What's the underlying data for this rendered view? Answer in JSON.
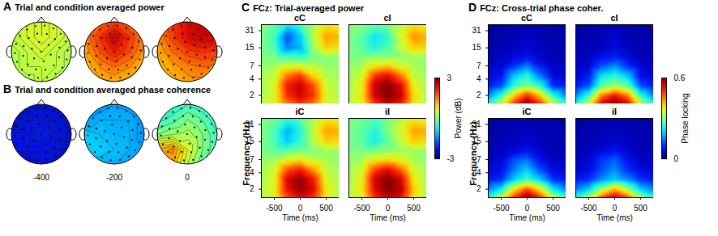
{
  "chart_data": [
    {
      "type": "topomap",
      "label": "A",
      "title": "Trial and condition averaged power",
      "maps": [
        [
          [
            0.5,
            0.5,
            0.6,
            0.5,
            0.5
          ],
          [
            0.4,
            0.5,
            0.6,
            0.5,
            0.4
          ],
          [
            0.3,
            0.4,
            0.5,
            0.4,
            0.3
          ],
          [
            0.3,
            0.4,
            0.4,
            0.4,
            0.3
          ],
          [
            0.3,
            0.3,
            0.4,
            0.3,
            0.3
          ]
        ],
        [
          [
            1.2,
            1.6,
            1.9,
            1.6,
            1.2
          ],
          [
            1.4,
            2.0,
            2.6,
            2.0,
            1.4
          ],
          [
            1.2,
            1.8,
            2.2,
            1.8,
            1.3
          ],
          [
            1.0,
            1.4,
            1.6,
            1.4,
            1.1
          ],
          [
            0.9,
            1.1,
            1.2,
            1.1,
            1.0
          ]
        ],
        [
          [
            1.6,
            2.0,
            2.4,
            2.6,
            2.4
          ],
          [
            1.4,
            1.9,
            2.4,
            2.6,
            2.4
          ],
          [
            1.2,
            1.6,
            1.9,
            2.0,
            1.9
          ],
          [
            1.1,
            1.3,
            1.5,
            1.6,
            1.5
          ],
          [
            1.0,
            1.1,
            1.3,
            1.3,
            1.2
          ]
        ]
      ]
    },
    {
      "type": "topomap",
      "label": "B",
      "title": "Trial and condition averaged phase coherence",
      "times": [
        -400,
        -200,
        0
      ],
      "maps": [
        [
          [
            0.06,
            0.06,
            0.06,
            0.06,
            0.06
          ],
          [
            0.06,
            0.07,
            0.07,
            0.07,
            0.06
          ],
          [
            0.07,
            0.07,
            0.08,
            0.07,
            0.06
          ],
          [
            0.07,
            0.07,
            0.07,
            0.07,
            0.06
          ],
          [
            0.06,
            0.06,
            0.07,
            0.06,
            0.06
          ]
        ],
        [
          [
            0.14,
            0.16,
            0.17,
            0.16,
            0.14
          ],
          [
            0.17,
            0.18,
            0.18,
            0.18,
            0.16
          ],
          [
            0.2,
            0.19,
            0.18,
            0.18,
            0.16
          ],
          [
            0.2,
            0.2,
            0.19,
            0.18,
            0.17
          ],
          [
            0.18,
            0.18,
            0.18,
            0.17,
            0.16
          ]
        ],
        [
          [
            0.22,
            0.24,
            0.26,
            0.24,
            0.22
          ],
          [
            0.25,
            0.27,
            0.3,
            0.28,
            0.24
          ],
          [
            0.3,
            0.32,
            0.33,
            0.3,
            0.26
          ],
          [
            0.42,
            0.45,
            0.36,
            0.3,
            0.26
          ],
          [
            0.4,
            0.42,
            0.34,
            0.28,
            0.25
          ]
        ]
      ]
    },
    {
      "type": "heatmap",
      "label": "C",
      "title": "FCz: Trial-averaged power",
      "xlabel": "Time (ms)",
      "ylabel": "Frequency (Hz)",
      "log": "y",
      "x": [
        -750,
        -500,
        -250,
        0,
        250,
        500,
        750
      ],
      "y": [
        1.4,
        2,
        3,
        4.5,
        7,
        10,
        15,
        24,
        40
      ],
      "xlim": [
        -750,
        750
      ],
      "ylim": [
        1.4,
        40
      ],
      "xticks": [
        -500,
        0,
        500
      ],
      "yticks": [
        2,
        4,
        7,
        15,
        31
      ],
      "colorbar": {
        "label": "Power (dB)",
        "range": [
          -3,
          3
        ],
        "ticks": [
          -3,
          3
        ]
      },
      "cells": [
        {
          "name": "cC",
          "values": [
            [
              0.3,
              0.5,
              1.5,
              2.0,
              1.5,
              0.5,
              0.3
            ],
            [
              0.3,
              0.6,
              2.0,
              2.5,
              2.0,
              0.6,
              0.3
            ],
            [
              0.2,
              0.6,
              2.2,
              2.6,
              1.8,
              0.5,
              0.2
            ],
            [
              0.2,
              0.4,
              1.6,
              2.0,
              1.0,
              0.3,
              0.2
            ],
            [
              0.1,
              0.2,
              0.5,
              0.6,
              0.3,
              0.1,
              0.1
            ],
            [
              0,
              0,
              -0.3,
              -0.4,
              0,
              0.1,
              0
            ],
            [
              0,
              -0.3,
              -1.5,
              -1.2,
              0.2,
              1.0,
              0.8
            ],
            [
              0,
              -0.4,
              -1.8,
              -1.0,
              0.3,
              1.3,
              1.2
            ],
            [
              0,
              -0.2,
              -0.8,
              -0.4,
              0.2,
              0.8,
              0.6
            ]
          ]
        },
        {
          "name": "cI",
          "values": [
            [
              0.3,
              0.6,
              2.0,
              2.6,
              2.2,
              0.8,
              0.3
            ],
            [
              0.3,
              0.8,
              2.5,
              3.0,
              2.6,
              0.9,
              0.3
            ],
            [
              0.2,
              0.7,
              2.6,
              3.0,
              2.4,
              0.7,
              0.2
            ],
            [
              0.2,
              0.5,
              2.0,
              2.4,
              1.6,
              0.4,
              0.2
            ],
            [
              0.1,
              0.2,
              0.8,
              1.0,
              0.5,
              0.2,
              0.1
            ],
            [
              0,
              0,
              0.1,
              0.1,
              0.1,
              0.2,
              0.1
            ],
            [
              0,
              -0.2,
              -0.6,
              -0.3,
              0.4,
              1.0,
              0.9
            ],
            [
              0,
              -0.2,
              -0.8,
              -0.5,
              0.5,
              1.4,
              1.2
            ],
            [
              0,
              0,
              -0.2,
              0,
              0.3,
              0.8,
              0.6
            ]
          ]
        },
        {
          "name": "iC",
          "values": [
            [
              0.3,
              0.6,
              1.8,
              2.4,
              2.0,
              0.7,
              0.3
            ],
            [
              0.3,
              0.7,
              2.3,
              2.9,
              2.4,
              0.8,
              0.3
            ],
            [
              0.2,
              0.6,
              2.4,
              2.9,
              2.2,
              0.6,
              0.2
            ],
            [
              0.2,
              0.5,
              1.8,
              2.2,
              1.4,
              0.4,
              0.2
            ],
            [
              0.1,
              0.2,
              0.6,
              0.8,
              0.4,
              0.2,
              0.1
            ],
            [
              0,
              -0.1,
              -0.2,
              0,
              0.1,
              0.2,
              0.1
            ],
            [
              0,
              -0.3,
              -1.0,
              -0.5,
              0.3,
              1.0,
              0.9
            ],
            [
              0,
              -0.3,
              -1.2,
              -0.6,
              0.4,
              1.3,
              1.2
            ],
            [
              0,
              -0.1,
              -0.5,
              -0.2,
              0.2,
              0.7,
              0.6
            ]
          ]
        },
        {
          "name": "iI",
          "values": [
            [
              0.3,
              0.6,
              2.0,
              2.6,
              2.3,
              0.8,
              0.3
            ],
            [
              0.3,
              0.8,
              2.4,
              3.0,
              2.7,
              1.0,
              0.3
            ],
            [
              0.2,
              0.7,
              2.5,
              3.0,
              2.5,
              0.8,
              0.2
            ],
            [
              0.2,
              0.5,
              1.9,
              2.4,
              1.7,
              0.5,
              0.2
            ],
            [
              0.1,
              0.2,
              0.7,
              0.9,
              0.6,
              0.2,
              0.1
            ],
            [
              0,
              0,
              0,
              0.1,
              0.2,
              0.2,
              0.1
            ],
            [
              0,
              -0.2,
              -0.7,
              -0.2,
              0.4,
              1.0,
              0.9
            ],
            [
              0,
              -0.2,
              -0.6,
              0,
              0.5,
              1.3,
              1.2
            ],
            [
              0,
              -0.1,
              -0.3,
              0,
              0.3,
              0.7,
              0.6
            ]
          ]
        }
      ]
    },
    {
      "type": "heatmap",
      "label": "D",
      "title": "FCz: Cross-trial phase coher.",
      "xlabel": "Time (ms)",
      "ylabel": "Frequency (Hz)",
      "log": "y",
      "x": [
        -750,
        -500,
        -250,
        0,
        250,
        500,
        750
      ],
      "y": [
        1.4,
        2,
        3,
        4.5,
        7,
        10,
        15,
        24,
        40
      ],
      "xlim": [
        -750,
        750
      ],
      "ylim": [
        1.4,
        40
      ],
      "xticks": [
        -500,
        0,
        500
      ],
      "yticks": [
        2,
        4,
        7,
        15,
        31
      ],
      "colorbar": {
        "label": "Phase locking",
        "range": [
          0,
          0.6
        ],
        "ticks": [
          0,
          0.6
        ]
      },
      "cells": [
        {
          "name": "cC",
          "values": [
            [
              0.25,
              0.35,
              0.5,
              0.6,
              0.5,
              0.35,
              0.25
            ],
            [
              0.15,
              0.25,
              0.4,
              0.5,
              0.4,
              0.25,
              0.15
            ],
            [
              0.08,
              0.12,
              0.25,
              0.3,
              0.25,
              0.1,
              0.08
            ],
            [
              0.05,
              0.08,
              0.2,
              0.25,
              0.15,
              0.06,
              0.05
            ],
            [
              0.04,
              0.05,
              0.1,
              0.15,
              0.08,
              0.04,
              0.04
            ],
            [
              0.03,
              0.04,
              0.06,
              0.08,
              0.05,
              0.03,
              0.03
            ],
            [
              0.03,
              0.03,
              0.04,
              0.05,
              0.04,
              0.03,
              0.03
            ],
            [
              0.02,
              0.03,
              0.03,
              0.04,
              0.03,
              0.03,
              0.02
            ],
            [
              0.02,
              0.02,
              0.03,
              0.03,
              0.03,
              0.02,
              0.02
            ]
          ]
        },
        {
          "name": "cI",
          "values": [
            [
              0.25,
              0.35,
              0.55,
              0.6,
              0.55,
              0.35,
              0.25
            ],
            [
              0.15,
              0.25,
              0.45,
              0.52,
              0.45,
              0.25,
              0.15
            ],
            [
              0.08,
              0.12,
              0.28,
              0.32,
              0.28,
              0.12,
              0.08
            ],
            [
              0.05,
              0.08,
              0.22,
              0.25,
              0.2,
              0.07,
              0.05
            ],
            [
              0.04,
              0.05,
              0.12,
              0.16,
              0.1,
              0.05,
              0.04
            ],
            [
              0.03,
              0.04,
              0.07,
              0.09,
              0.06,
              0.03,
              0.03
            ],
            [
              0.03,
              0.03,
              0.04,
              0.06,
              0.04,
              0.03,
              0.03
            ],
            [
              0.02,
              0.03,
              0.03,
              0.05,
              0.03,
              0.03,
              0.02
            ],
            [
              0.02,
              0.02,
              0.03,
              0.04,
              0.03,
              0.02,
              0.02
            ]
          ]
        },
        {
          "name": "iC",
          "values": [
            [
              0.25,
              0.35,
              0.5,
              0.6,
              0.5,
              0.35,
              0.25
            ],
            [
              0.15,
              0.22,
              0.38,
              0.48,
              0.38,
              0.22,
              0.15
            ],
            [
              0.08,
              0.1,
              0.2,
              0.26,
              0.2,
              0.1,
              0.08
            ],
            [
              0.05,
              0.07,
              0.15,
              0.2,
              0.12,
              0.06,
              0.05
            ],
            [
              0.04,
              0.05,
              0.12,
              0.14,
              0.07,
              0.04,
              0.04
            ],
            [
              0.03,
              0.04,
              0.06,
              0.08,
              0.05,
              0.03,
              0.03
            ],
            [
              0.03,
              0.03,
              0.04,
              0.05,
              0.04,
              0.03,
              0.03
            ],
            [
              0.02,
              0.03,
              0.03,
              0.04,
              0.03,
              0.03,
              0.02
            ],
            [
              0.02,
              0.02,
              0.03,
              0.03,
              0.03,
              0.02,
              0.02
            ]
          ]
        },
        {
          "name": "iI",
          "values": [
            [
              0.25,
              0.33,
              0.48,
              0.56,
              0.48,
              0.33,
              0.25
            ],
            [
              0.15,
              0.2,
              0.32,
              0.42,
              0.32,
              0.2,
              0.15
            ],
            [
              0.08,
              0.1,
              0.16,
              0.2,
              0.16,
              0.1,
              0.08
            ],
            [
              0.05,
              0.06,
              0.12,
              0.16,
              0.1,
              0.06,
              0.05
            ],
            [
              0.04,
              0.05,
              0.1,
              0.13,
              0.07,
              0.04,
              0.04
            ],
            [
              0.03,
              0.04,
              0.06,
              0.08,
              0.05,
              0.03,
              0.03
            ],
            [
              0.03,
              0.03,
              0.04,
              0.05,
              0.04,
              0.03,
              0.03
            ],
            [
              0.02,
              0.03,
              0.03,
              0.04,
              0.03,
              0.03,
              0.02
            ],
            [
              0.02,
              0.02,
              0.03,
              0.03,
              0.03,
              0.02,
              0.02
            ]
          ]
        }
      ]
    }
  ]
}
